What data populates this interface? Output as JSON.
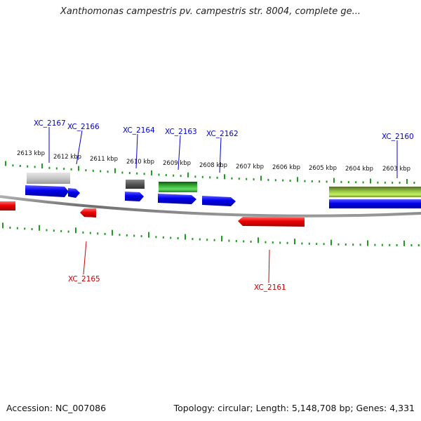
{
  "title": "Xanthomonas campestris pv. campestris str. 8004, complete ge...",
  "accession": "Accession: NC_007086",
  "topology": "Topology: circular; Length: 5,148,708 bp; Genes: 4,331",
  "colors": {
    "forward_gene": "#0000ee",
    "reverse_gene": "#ee0000",
    "backbone": "#888888",
    "tick": "#229922"
  },
  "kbp_labels": [
    "2613 kbp",
    "2612 kbp",
    "2611 kbp",
    "2610 kbp",
    "2609 kbp",
    "2608 kbp",
    "2607 kbp",
    "2606 kbp",
    "2605 kbp",
    "2604 kbp",
    "2603 kbp"
  ],
  "forward_labels": [
    "XC_2167",
    "XC_2166",
    "XC_2164",
    "XC_2163",
    "XC_2162",
    "XC_2160"
  ],
  "reverse_labels": [
    "XC_2165",
    "XC_2161"
  ]
}
